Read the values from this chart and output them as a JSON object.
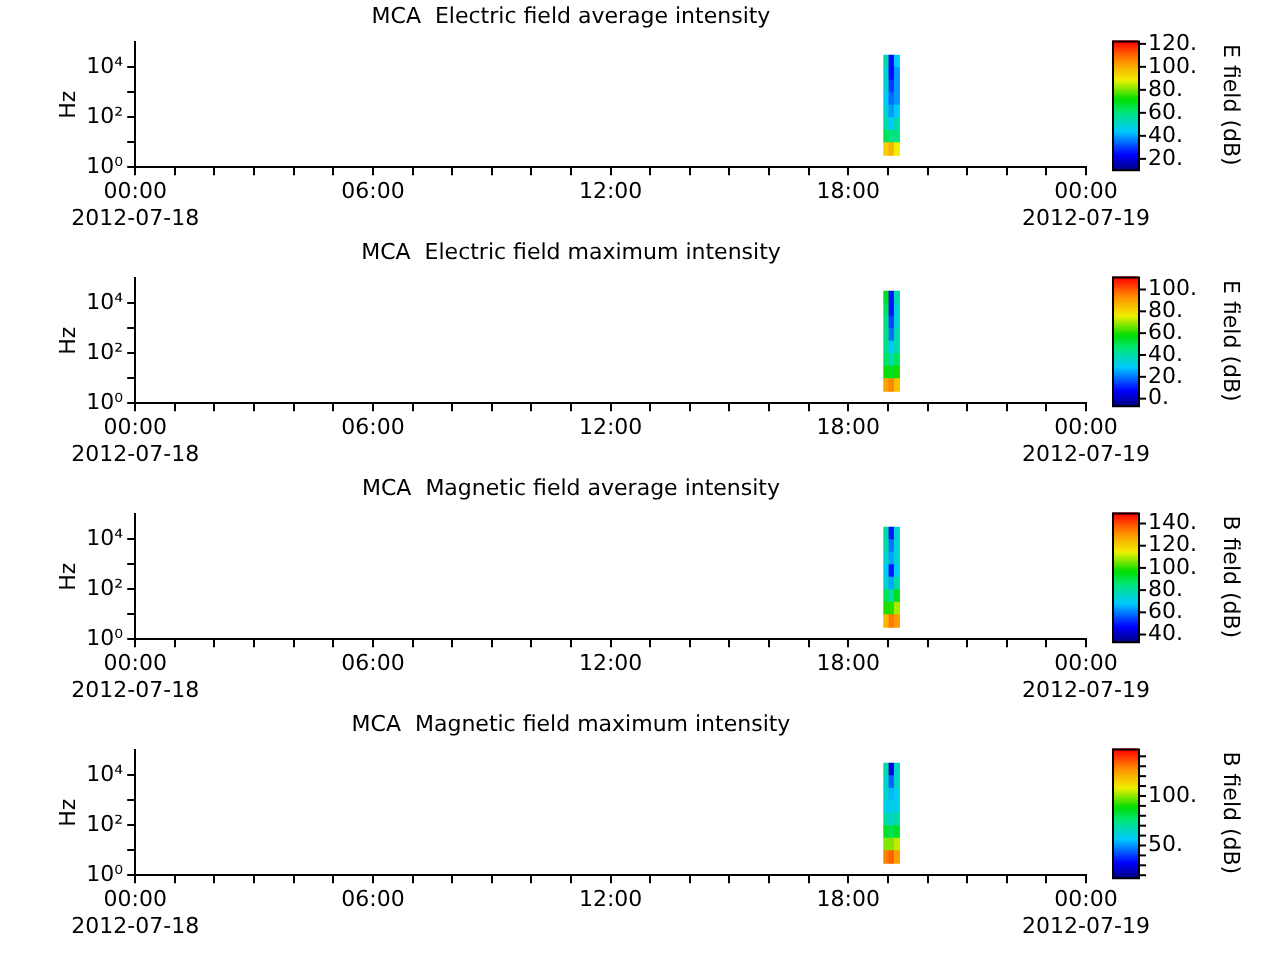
{
  "chart_data": [
    {
      "type": "heatmap",
      "title": "MCA  Electric field average intensity",
      "ylabel": "Hz",
      "clabel": "E field (dB)",
      "log": "y",
      "grid": false,
      "x": [
        "2012-07-18T18:57",
        "2012-07-18T19:05",
        "2012-07-18T19:13"
      ],
      "y": [
        18000,
        5600,
        1800,
        560,
        180,
        56,
        18,
        5.6
      ],
      "xlim": [
        "2012-07-18T00:00",
        "2012-07-19T00:00"
      ],
      "xticks": [
        {
          "value": "2012-07-18T00:00",
          "label": "00:00\n2012-07-18"
        },
        {
          "value": "2012-07-18T01:00",
          "label": null
        },
        {
          "value": "2012-07-18T02:00",
          "label": null
        },
        {
          "value": "2012-07-18T03:00",
          "label": null
        },
        {
          "value": "2012-07-18T04:00",
          "label": null
        },
        {
          "value": "2012-07-18T05:00",
          "label": null
        },
        {
          "value": "2012-07-18T06:00",
          "label": "06:00"
        },
        {
          "value": "2012-07-18T07:00",
          "label": null
        },
        {
          "value": "2012-07-18T08:00",
          "label": null
        },
        {
          "value": "2012-07-18T09:00",
          "label": null
        },
        {
          "value": "2012-07-18T10:00",
          "label": null
        },
        {
          "value": "2012-07-18T11:00",
          "label": null
        },
        {
          "value": "2012-07-18T12:00",
          "label": "12:00"
        },
        {
          "value": "2012-07-18T13:00",
          "label": null
        },
        {
          "value": "2012-07-18T14:00",
          "label": null
        },
        {
          "value": "2012-07-18T15:00",
          "label": null
        },
        {
          "value": "2012-07-18T16:00",
          "label": null
        },
        {
          "value": "2012-07-18T17:00",
          "label": null
        },
        {
          "value": "2012-07-18T18:00",
          "label": "18:00"
        },
        {
          "value": "2012-07-18T19:00",
          "label": null
        },
        {
          "value": "2012-07-18T20:00",
          "label": null
        },
        {
          "value": "2012-07-18T21:00",
          "label": null
        },
        {
          "value": "2012-07-18T22:00",
          "label": null
        },
        {
          "value": "2012-07-18T23:00",
          "label": null
        },
        {
          "value": "2012-07-19T00:00",
          "label": "00:00\n2012-07-19"
        }
      ],
      "ylim": [
        1,
        100000
      ],
      "yticks": [
        {
          "value": 1,
          "label": "10⁰"
        },
        {
          "value": 10,
          "label": null
        },
        {
          "value": 100,
          "label": "10²"
        },
        {
          "value": 1000,
          "label": null
        },
        {
          "value": 10000,
          "label": "10⁴"
        }
      ],
      "clim": [
        11,
        123
      ],
      "cticks": [
        {
          "value": 20,
          "label": "20."
        },
        {
          "value": 40,
          "label": "40."
        },
        {
          "value": 60,
          "label": "60."
        },
        {
          "value": 80,
          "label": "80."
        },
        {
          "value": 100,
          "label": "100."
        },
        {
          "value": 120,
          "label": "120."
        }
      ],
      "cells": [
        [
          55,
          25,
          45
        ],
        [
          50,
          25,
          40
        ],
        [
          50,
          30,
          40
        ],
        [
          45,
          35,
          40
        ],
        [
          50,
          40,
          45
        ],
        [
          55,
          45,
          55
        ],
        [
          65,
          60,
          60
        ],
        [
          95,
          100,
          90
        ]
      ]
    },
    {
      "type": "heatmap",
      "title": "MCA  Electric field maximum intensity",
      "ylabel": "Hz",
      "clabel": "E field (dB)",
      "log": "y",
      "grid": false,
      "x": [
        "2012-07-18T18:57",
        "2012-07-18T19:05",
        "2012-07-18T19:13"
      ],
      "y": [
        18000,
        5600,
        1800,
        560,
        180,
        56,
        18,
        5.6
      ],
      "xlim": [
        "2012-07-18T00:00",
        "2012-07-19T00:00"
      ],
      "xticks": [
        {
          "value": "2012-07-18T00:00",
          "label": "00:00\n2012-07-18"
        },
        {
          "value": "2012-07-18T01:00",
          "label": null
        },
        {
          "value": "2012-07-18T02:00",
          "label": null
        },
        {
          "value": "2012-07-18T03:00",
          "label": null
        },
        {
          "value": "2012-07-18T04:00",
          "label": null
        },
        {
          "value": "2012-07-18T05:00",
          "label": null
        },
        {
          "value": "2012-07-18T06:00",
          "label": "06:00"
        },
        {
          "value": "2012-07-18T07:00",
          "label": null
        },
        {
          "value": "2012-07-18T08:00",
          "label": null
        },
        {
          "value": "2012-07-18T09:00",
          "label": null
        },
        {
          "value": "2012-07-18T10:00",
          "label": null
        },
        {
          "value": "2012-07-18T11:00",
          "label": null
        },
        {
          "value": "2012-07-18T12:00",
          "label": "12:00"
        },
        {
          "value": "2012-07-18T13:00",
          "label": null
        },
        {
          "value": "2012-07-18T14:00",
          "label": null
        },
        {
          "value": "2012-07-18T15:00",
          "label": null
        },
        {
          "value": "2012-07-18T16:00",
          "label": null
        },
        {
          "value": "2012-07-18T17:00",
          "label": null
        },
        {
          "value": "2012-07-18T18:00",
          "label": "18:00"
        },
        {
          "value": "2012-07-18T19:00",
          "label": null
        },
        {
          "value": "2012-07-18T20:00",
          "label": null
        },
        {
          "value": "2012-07-18T21:00",
          "label": null
        },
        {
          "value": "2012-07-18T22:00",
          "label": null
        },
        {
          "value": "2012-07-18T23:00",
          "label": null
        },
        {
          "value": "2012-07-19T00:00",
          "label": "00:00\n2012-07-19"
        }
      ],
      "ylim": [
        1,
        100000
      ],
      "yticks": [
        {
          "value": 1,
          "label": "10⁰"
        },
        {
          "value": 10,
          "label": null
        },
        {
          "value": 100,
          "label": "10²"
        },
        {
          "value": 1000,
          "label": null
        },
        {
          "value": 10000,
          "label": "10⁴"
        }
      ],
      "clim": [
        -6,
        112
      ],
      "cticks": [
        {
          "value": 0,
          "label": "0."
        },
        {
          "value": 20,
          "label": "20."
        },
        {
          "value": 40,
          "label": "40."
        },
        {
          "value": 60,
          "label": "60."
        },
        {
          "value": 80,
          "label": "80."
        },
        {
          "value": 100,
          "label": "100."
        }
      ],
      "cells": [
        [
          55,
          10,
          40
        ],
        [
          50,
          10,
          35
        ],
        [
          45,
          15,
          35
        ],
        [
          45,
          20,
          40
        ],
        [
          45,
          30,
          40
        ],
        [
          50,
          40,
          50
        ],
        [
          60,
          55,
          60
        ],
        [
          90,
          95,
          85
        ]
      ]
    },
    {
      "type": "heatmap",
      "title": "MCA  Magnetic field average intensity",
      "ylabel": "Hz",
      "clabel": "B field (dB)",
      "log": "y",
      "grid": false,
      "x": [
        "2012-07-18T18:57",
        "2012-07-18T19:05",
        "2012-07-18T19:13"
      ],
      "y": [
        18000,
        5600,
        1800,
        560,
        180,
        56,
        18,
        5.6
      ],
      "xlim": [
        "2012-07-18T00:00",
        "2012-07-19T00:00"
      ],
      "xticks": [
        {
          "value": "2012-07-18T00:00",
          "label": "00:00\n2012-07-18"
        },
        {
          "value": "2012-07-18T01:00",
          "label": null
        },
        {
          "value": "2012-07-18T02:00",
          "label": null
        },
        {
          "value": "2012-07-18T03:00",
          "label": null
        },
        {
          "value": "2012-07-18T04:00",
          "label": null
        },
        {
          "value": "2012-07-18T05:00",
          "label": null
        },
        {
          "value": "2012-07-18T06:00",
          "label": "06:00"
        },
        {
          "value": "2012-07-18T07:00",
          "label": null
        },
        {
          "value": "2012-07-18T08:00",
          "label": null
        },
        {
          "value": "2012-07-18T09:00",
          "label": null
        },
        {
          "value": "2012-07-18T10:00",
          "label": null
        },
        {
          "value": "2012-07-18T11:00",
          "label": null
        },
        {
          "value": "2012-07-18T12:00",
          "label": "12:00"
        },
        {
          "value": "2012-07-18T13:00",
          "label": null
        },
        {
          "value": "2012-07-18T14:00",
          "label": null
        },
        {
          "value": "2012-07-18T15:00",
          "label": null
        },
        {
          "value": "2012-07-18T16:00",
          "label": null
        },
        {
          "value": "2012-07-18T17:00",
          "label": null
        },
        {
          "value": "2012-07-18T18:00",
          "label": "18:00"
        },
        {
          "value": "2012-07-18T19:00",
          "label": null
        },
        {
          "value": "2012-07-18T20:00",
          "label": null
        },
        {
          "value": "2012-07-18T21:00",
          "label": null
        },
        {
          "value": "2012-07-18T22:00",
          "label": null
        },
        {
          "value": "2012-07-18T23:00",
          "label": null
        },
        {
          "value": "2012-07-19T00:00",
          "label": "00:00\n2012-07-19"
        }
      ],
      "ylim": [
        1,
        100000
      ],
      "yticks": [
        {
          "value": 1,
          "label": "10⁰"
        },
        {
          "value": 10,
          "label": null
        },
        {
          "value": 100,
          "label": "10²"
        },
        {
          "value": 1000,
          "label": null
        },
        {
          "value": 10000,
          "label": "10⁴"
        }
      ],
      "clim": [
        34,
        150
      ],
      "cticks": [
        {
          "value": 40,
          "label": "40."
        },
        {
          "value": 60,
          "label": "60."
        },
        {
          "value": 80,
          "label": "80."
        },
        {
          "value": 100,
          "label": "100."
        },
        {
          "value": 120,
          "label": "120."
        },
        {
          "value": 140,
          "label": "140."
        }
      ],
      "cells": [
        [
          80,
          50,
          75
        ],
        [
          80,
          60,
          75
        ],
        [
          75,
          65,
          75
        ],
        [
          70,
          50,
          70
        ],
        [
          75,
          65,
          80
        ],
        [
          90,
          80,
          95
        ],
        [
          100,
          100,
          110
        ],
        [
          125,
          135,
          130
        ]
      ]
    },
    {
      "type": "heatmap",
      "title": "MCA  Magnetic field maximum intensity",
      "ylabel": "Hz",
      "clabel": "B field (dB)",
      "log": "y",
      "grid": false,
      "x": [
        "2012-07-18T18:57",
        "2012-07-18T19:05",
        "2012-07-18T19:13"
      ],
      "y": [
        18000,
        5600,
        1800,
        560,
        180,
        56,
        18,
        5.6
      ],
      "xlim": [
        "2012-07-18T00:00",
        "2012-07-19T00:00"
      ],
      "xticks": [
        {
          "value": "2012-07-18T00:00",
          "label": "00:00\n2012-07-18"
        },
        {
          "value": "2012-07-18T01:00",
          "label": null
        },
        {
          "value": "2012-07-18T02:00",
          "label": null
        },
        {
          "value": "2012-07-18T03:00",
          "label": null
        },
        {
          "value": "2012-07-18T04:00",
          "label": null
        },
        {
          "value": "2012-07-18T05:00",
          "label": null
        },
        {
          "value": "2012-07-18T06:00",
          "label": "06:00"
        },
        {
          "value": "2012-07-18T07:00",
          "label": null
        },
        {
          "value": "2012-07-18T08:00",
          "label": null
        },
        {
          "value": "2012-07-18T09:00",
          "label": null
        },
        {
          "value": "2012-07-18T10:00",
          "label": null
        },
        {
          "value": "2012-07-18T11:00",
          "label": null
        },
        {
          "value": "2012-07-18T12:00",
          "label": "12:00"
        },
        {
          "value": "2012-07-18T13:00",
          "label": null
        },
        {
          "value": "2012-07-18T14:00",
          "label": null
        },
        {
          "value": "2012-07-18T15:00",
          "label": null
        },
        {
          "value": "2012-07-18T16:00",
          "label": null
        },
        {
          "value": "2012-07-18T17:00",
          "label": null
        },
        {
          "value": "2012-07-18T18:00",
          "label": "18:00"
        },
        {
          "value": "2012-07-18T19:00",
          "label": null
        },
        {
          "value": "2012-07-18T20:00",
          "label": null
        },
        {
          "value": "2012-07-18T21:00",
          "label": null
        },
        {
          "value": "2012-07-18T22:00",
          "label": null
        },
        {
          "value": "2012-07-18T23:00",
          "label": null
        },
        {
          "value": "2012-07-19T00:00",
          "label": "00:00\n2012-07-19"
        }
      ],
      "ylim": [
        1,
        100000
      ],
      "yticks": [
        {
          "value": 1,
          "label": "10⁰"
        },
        {
          "value": 10,
          "label": null
        },
        {
          "value": 100,
          "label": "10²"
        },
        {
          "value": 1000,
          "label": null
        },
        {
          "value": 10000,
          "label": "10⁴"
        }
      ],
      "clim": [
        18,
        148
      ],
      "cticks": [
        {
          "value": 20,
          "label": null
        },
        {
          "value": 30,
          "label": null
        },
        {
          "value": 40,
          "label": null
        },
        {
          "value": 50,
          "label": "50."
        },
        {
          "value": 60,
          "label": null
        },
        {
          "value": 70,
          "label": null
        },
        {
          "value": 80,
          "label": null
        },
        {
          "value": 90,
          "label": null
        },
        {
          "value": 100,
          "label": "100."
        },
        {
          "value": 110,
          "label": null
        },
        {
          "value": 120,
          "label": null
        },
        {
          "value": 130,
          "label": null
        },
        {
          "value": 140,
          "label": null
        }
      ],
      "cells": [
        [
          70,
          30,
          65
        ],
        [
          65,
          45,
          65
        ],
        [
          65,
          55,
          60
        ],
        [
          60,
          60,
          60
        ],
        [
          70,
          65,
          70
        ],
        [
          85,
          80,
          85
        ],
        [
          100,
          100,
          105
        ],
        [
          130,
          135,
          125
        ]
      ]
    }
  ]
}
